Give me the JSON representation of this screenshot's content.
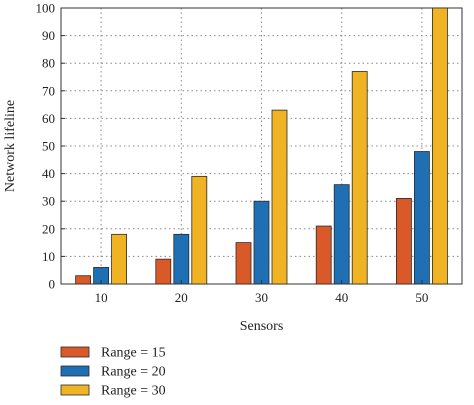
{
  "chart_data": {
    "type": "bar",
    "categories": [
      "10",
      "20",
      "30",
      "40",
      "50"
    ],
    "series": [
      {
        "name": "Range = 15",
        "values": [
          3,
          9,
          15,
          21,
          31
        ],
        "color": "#d95a28"
      },
      {
        "name": "Range = 20",
        "values": [
          6,
          18,
          30,
          36,
          48
        ],
        "color": "#1f6fb5"
      },
      {
        "name": "Range = 30",
        "values": [
          18,
          39,
          63,
          77,
          100
        ],
        "color": "#f0b323"
      }
    ],
    "title": "",
    "xlabel": "Sensors",
    "ylabel": "Network lifeline",
    "ylim": [
      0,
      100
    ],
    "yticks": [
      0,
      10,
      20,
      30,
      40,
      50,
      60,
      70,
      80,
      90,
      100
    ],
    "grid": true,
    "legend_position": "bottom-left"
  }
}
